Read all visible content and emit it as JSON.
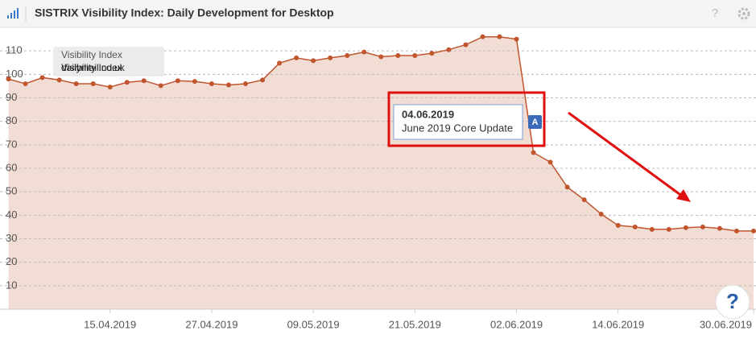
{
  "chart_data": {
    "type": "area",
    "title": "SISTRIX Visibility Index: Daily Development for Desktop",
    "help": "?",
    "corner_help": "?",
    "legend": {
      "label": "Visibility Index",
      "domain": "dailymail.co.uk"
    },
    "annotation": {
      "date": "04.06.2019",
      "text": "June 2019 Core Update",
      "marker": "A"
    },
    "x": [
      "03.04.2019",
      "05.04.2019",
      "07.04.2019",
      "09.04.2019",
      "11.04.2019",
      "13.04.2019",
      "15.04.2019",
      "17.04.2019",
      "19.04.2019",
      "21.04.2019",
      "23.04.2019",
      "25.04.2019",
      "27.04.2019",
      "29.04.2019",
      "01.05.2019",
      "03.05.2019",
      "05.05.2019",
      "07.05.2019",
      "09.05.2019",
      "11.05.2019",
      "13.05.2019",
      "15.05.2019",
      "17.05.2019",
      "19.05.2019",
      "21.05.2019",
      "23.05.2019",
      "25.05.2019",
      "27.05.2019",
      "29.05.2019",
      "31.05.2019",
      "02.06.2019",
      "04.06.2019",
      "06.06.2019",
      "08.06.2019",
      "10.06.2019",
      "12.06.2019",
      "14.06.2019",
      "16.06.2019",
      "18.06.2019",
      "20.06.2019",
      "22.06.2019",
      "24.06.2019",
      "26.06.2019",
      "28.06.2019",
      "30.06.2019"
    ],
    "series": [
      {
        "name": "Visibility Index",
        "color": "#c0552e",
        "values": [
          98,
          96,
          98.6,
          97.6,
          96,
          96,
          94.6,
          96.6,
          97.3,
          95.2,
          97.3,
          97,
          96,
          95.5,
          96,
          97.6,
          104.8,
          107,
          105.8,
          107,
          108,
          109.5,
          107.5,
          108,
          108,
          109,
          110.5,
          112.6,
          116,
          116,
          115,
          66.7,
          62.6,
          52,
          46.6,
          40.5,
          35.7,
          35,
          34,
          34,
          34.7,
          35,
          34.4,
          33.3,
          33.3
        ]
      }
    ],
    "xlim": [
      "02.04.2019",
      "30.06.2019"
    ],
    "xticks": [
      "15.04.2019",
      "27.04.2019",
      "09.05.2019",
      "21.05.2019",
      "02.06.2019",
      "14.06.2019",
      "30.06.2019"
    ],
    "ylim": [
      0,
      120
    ],
    "yticks": [
      10,
      20,
      30,
      40,
      50,
      60,
      70,
      80,
      90,
      100,
      110
    ],
    "grid": true
  }
}
